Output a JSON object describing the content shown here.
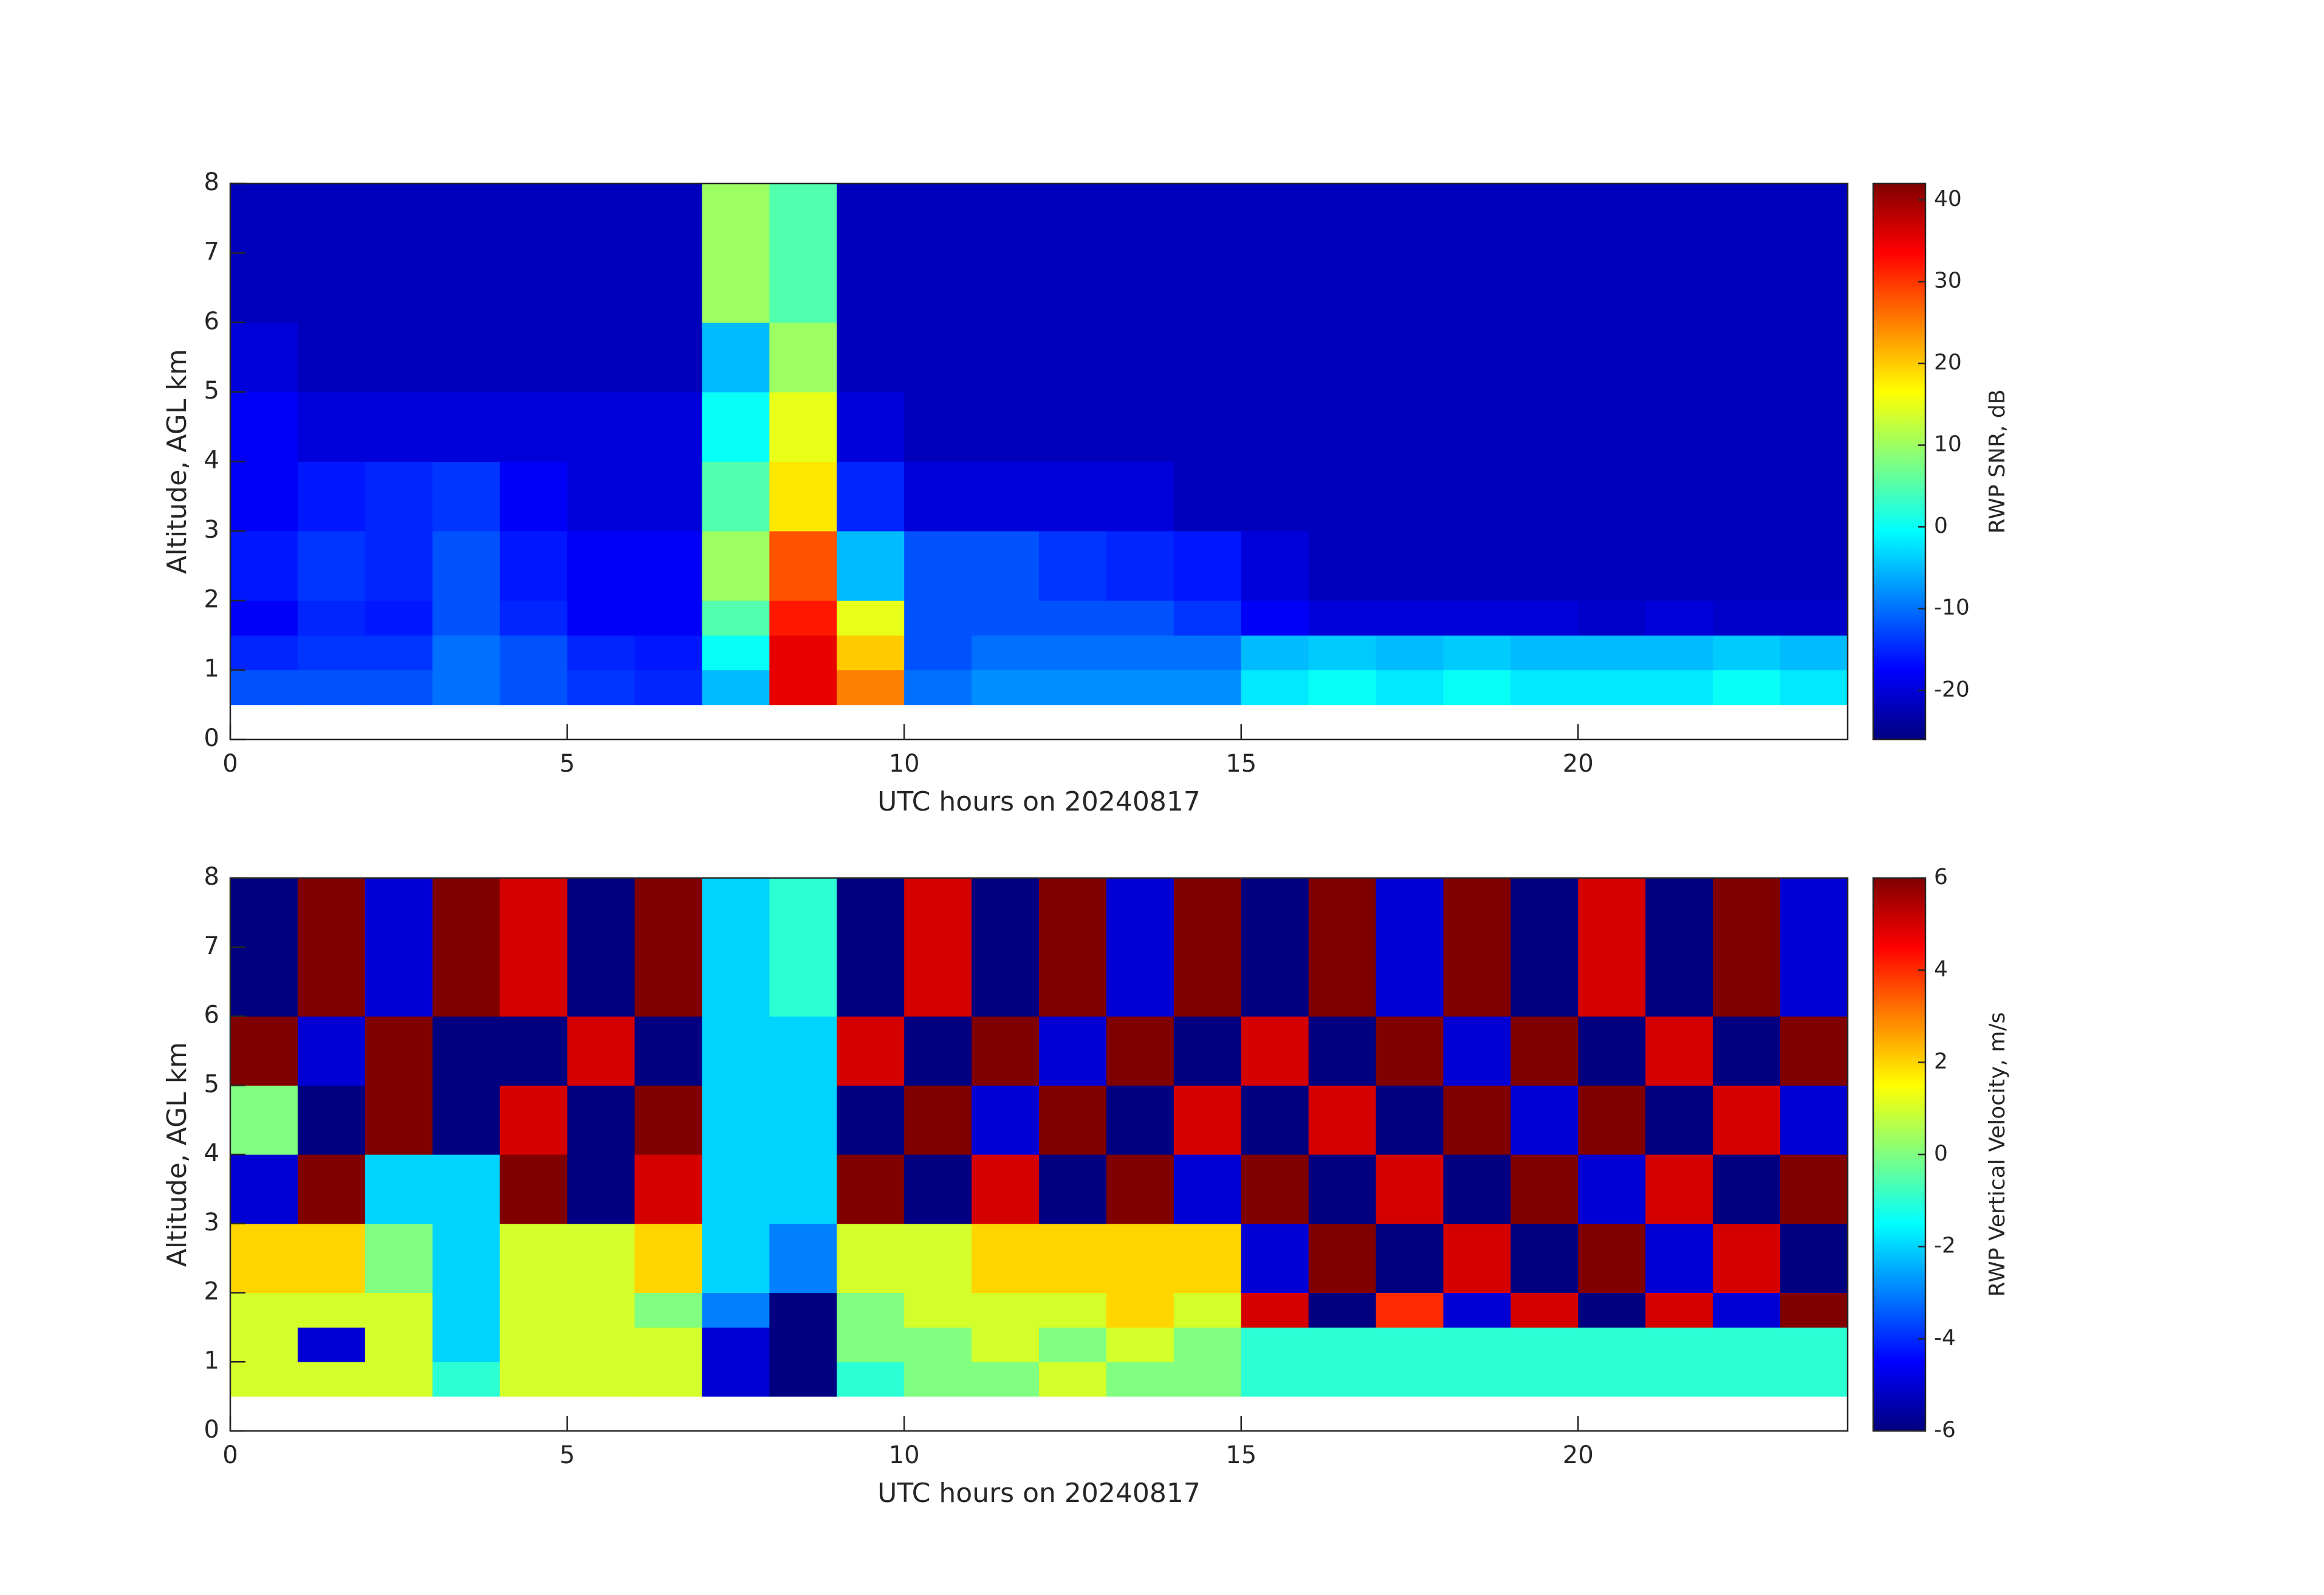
{
  "chart_data": [
    {
      "type": "heatmap",
      "colormap": "jet",
      "xlabel": "UTC hours on 20240817",
      "ylabel": "Altitude, AGL km",
      "colorbar_label": "RWP SNR, dB",
      "xlim": [
        0,
        24
      ],
      "ylim": [
        0,
        8
      ],
      "xticks": [
        0,
        5,
        10,
        15,
        20
      ],
      "yticks": [
        0,
        1,
        2,
        3,
        4,
        5,
        6,
        7,
        8
      ],
      "clim": [
        -26,
        42
      ],
      "cticks": [
        -20,
        -10,
        0,
        10,
        20,
        30,
        40
      ],
      "x_edges": [
        0,
        1,
        2,
        3,
        4,
        5,
        6,
        7,
        8,
        9,
        10,
        11,
        12,
        13,
        14,
        15,
        16,
        17,
        18,
        19,
        20,
        21,
        22,
        23,
        24
      ],
      "y_edges": [
        0.5,
        1,
        1.5,
        2,
        3,
        4,
        5,
        6,
        8
      ],
      "z": [
        [
          -12,
          -12,
          -12,
          -10,
          -12,
          -14,
          -15,
          -5,
          35,
          25,
          -10,
          -8,
          -8,
          -8,
          -8,
          -2,
          0,
          -2,
          0,
          -2,
          -2,
          -2,
          0,
          -2
        ],
        [
          -15,
          -14,
          -14,
          -10,
          -12,
          -15,
          -16,
          0,
          35,
          20,
          -12,
          -10,
          -10,
          -10,
          -10,
          -5,
          -4,
          -5,
          -4,
          -5,
          -5,
          -5,
          -4,
          -5
        ],
        [
          -18,
          -15,
          -16,
          -12,
          -15,
          -18,
          -18,
          5,
          32,
          15,
          -12,
          -12,
          -12,
          -12,
          -14,
          -18,
          -20,
          -20,
          -20,
          -20,
          -21,
          -20,
          -21,
          -21
        ],
        [
          -16,
          -14,
          -15,
          -12,
          -16,
          -18,
          -18,
          10,
          28,
          -5,
          -12,
          -12,
          -14,
          -15,
          -16,
          -20,
          -22,
          -22,
          -22,
          -22,
          -22,
          -22,
          -22,
          -22
        ],
        [
          -18,
          -16,
          -15,
          -14,
          -18,
          -20,
          -20,
          5,
          18,
          -15,
          -20,
          -20,
          -20,
          -20,
          -22,
          -22,
          -22,
          -22,
          -22,
          -22,
          -22,
          -22,
          -22,
          -22
        ],
        [
          -18,
          -20,
          -20,
          -20,
          -20,
          -20,
          -20,
          0,
          15,
          -20,
          -22,
          -22,
          -22,
          -22,
          -22,
          -22,
          -22,
          -22,
          -22,
          -22,
          -22,
          -22,
          -22,
          -22
        ],
        [
          -20,
          -22,
          -22,
          -22,
          -22,
          -22,
          -22,
          -5,
          10,
          -22,
          -22,
          -22,
          -22,
          -22,
          -22,
          -22,
          -22,
          -22,
          -22,
          -22,
          -22,
          -22,
          -22,
          -22
        ],
        [
          -22,
          -22,
          -22,
          -22,
          -22,
          -22,
          -22,
          10,
          5,
          -22,
          -22,
          -22,
          -22,
          -22,
          -22,
          -22,
          -22,
          -22,
          -22,
          -22,
          -22,
          -22,
          -22,
          -22
        ]
      ]
    },
    {
      "type": "heatmap",
      "colormap": "jet",
      "xlabel": "UTC hours on 20240817",
      "ylabel": "Altitude, AGL km",
      "colorbar_label": "RWP Vertical Velocity, m/s",
      "xlim": [
        0,
        24
      ],
      "ylim": [
        0,
        8
      ],
      "xticks": [
        0,
        5,
        10,
        15,
        20
      ],
      "yticks": [
        0,
        1,
        2,
        3,
        4,
        5,
        6,
        7,
        8
      ],
      "clim": [
        -6,
        6
      ],
      "cticks": [
        -6,
        -4,
        -2,
        0,
        2,
        4,
        6
      ],
      "x_edges": [
        0,
        1,
        2,
        3,
        4,
        5,
        6,
        7,
        8,
        9,
        10,
        11,
        12,
        13,
        14,
        15,
        16,
        17,
        18,
        19,
        20,
        21,
        22,
        23,
        24
      ],
      "y_edges": [
        0.5,
        1,
        1.5,
        2,
        3,
        4,
        5,
        6,
        8
      ],
      "z": [
        [
          1,
          1,
          1,
          -1,
          1,
          1,
          1,
          -5,
          -6,
          -1,
          0,
          0,
          1,
          0,
          0,
          -1,
          -1,
          -1,
          -1,
          -1,
          -1,
          -1,
          -1,
          -1
        ],
        [
          1,
          -5,
          1,
          -2,
          1,
          1,
          1,
          -5,
          -6,
          0,
          0,
          1,
          0,
          1,
          0,
          -1,
          -1,
          -1,
          -1,
          -1,
          -1,
          -1,
          -1,
          -1
        ],
        [
          1,
          1,
          1,
          -2,
          1,
          1,
          0,
          -3,
          -6,
          0,
          1,
          1,
          1,
          2,
          1,
          5,
          -6,
          4,
          -5,
          5,
          -6,
          5,
          -5,
          6
        ],
        [
          2,
          2,
          0,
          -2,
          1,
          1,
          2,
          -2,
          -3,
          1,
          1,
          2,
          2,
          2,
          2,
          -5,
          6,
          -6,
          5,
          -6,
          6,
          -5,
          5,
          -6
        ],
        [
          -5,
          6,
          -2,
          -2,
          6,
          -6,
          5,
          -2,
          -2,
          6,
          -6,
          5,
          -6,
          6,
          -5,
          6,
          -6,
          5,
          -6,
          6,
          -5,
          5,
          -6,
          6
        ],
        [
          0,
          -6,
          6,
          -6,
          5,
          -6,
          6,
          -2,
          -2,
          -6,
          6,
          -5,
          6,
          -6,
          5,
          -6,
          5,
          -6,
          6,
          -5,
          6,
          -6,
          5,
          -5
        ],
        [
          6,
          -5,
          6,
          -6,
          -6,
          5,
          -6,
          -2,
          -2,
          5,
          -6,
          6,
          -5,
          6,
          -6,
          5,
          -6,
          6,
          -5,
          6,
          -6,
          5,
          -6,
          6
        ],
        [
          -6,
          6,
          -5,
          6,
          5,
          -6,
          6,
          -2,
          -1,
          -6,
          5,
          -6,
          6,
          -5,
          6,
          -6,
          6,
          -5,
          6,
          -6,
          5,
          -6,
          6,
          -5
        ]
      ]
    }
  ]
}
